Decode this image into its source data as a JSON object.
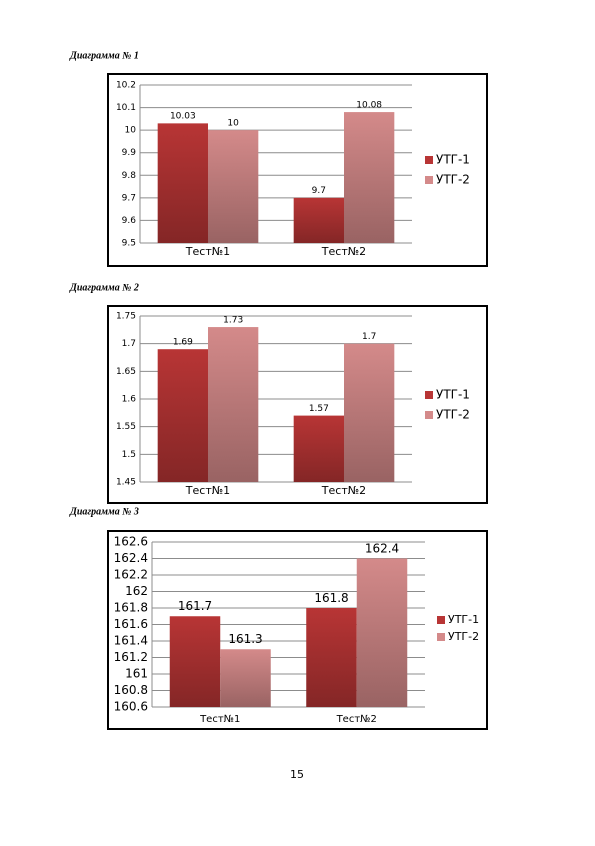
{
  "chart_data": [
    {
      "type": "bar",
      "title": "Диаграмма № 1",
      "categories": [
        "Тест№1",
        "Тест№2"
      ],
      "series": [
        {
          "name": "УТГ-1",
          "color": "#b83535",
          "values": [
            10.03,
            9.7
          ]
        },
        {
          "name": "УТГ-2",
          "color": "#d48a8a",
          "values": [
            10,
            10.08
          ]
        }
      ],
      "ylim": [
        9.5,
        10.2
      ],
      "yticks": [
        9.5,
        9.6,
        9.7,
        9.8,
        9.9,
        10,
        10.1,
        10.2
      ],
      "grid": true
    },
    {
      "type": "bar",
      "title": "Диаграмма № 2",
      "categories": [
        "Тест№1",
        "Тест№2"
      ],
      "series": [
        {
          "name": "УТГ-1",
          "color": "#b83535",
          "values": [
            1.69,
            1.57
          ]
        },
        {
          "name": "УТГ-2",
          "color": "#d48a8a",
          "values": [
            1.73,
            1.7
          ]
        }
      ],
      "ylim": [
        1.45,
        1.75
      ],
      "yticks": [
        1.45,
        1.5,
        1.55,
        1.6,
        1.65,
        1.7,
        1.75
      ],
      "grid": true
    },
    {
      "type": "bar",
      "title": "Диаграмма № 3",
      "categories": [
        "Тест№1",
        "Тест№2"
      ],
      "series": [
        {
          "name": "УТГ-1",
          "color": "#b83535",
          "values": [
            161.7,
            161.8
          ]
        },
        {
          "name": "УТГ-2",
          "color": "#d48a8a",
          "values": [
            161.3,
            162.4
          ]
        }
      ],
      "ylim": [
        160.6,
        162.6
      ],
      "yticks": [
        160.6,
        160.8,
        161,
        161.2,
        161.4,
        161.6,
        161.8,
        162,
        162.2,
        162.4,
        162.6
      ],
      "grid": true
    }
  ],
  "page_number": "15"
}
